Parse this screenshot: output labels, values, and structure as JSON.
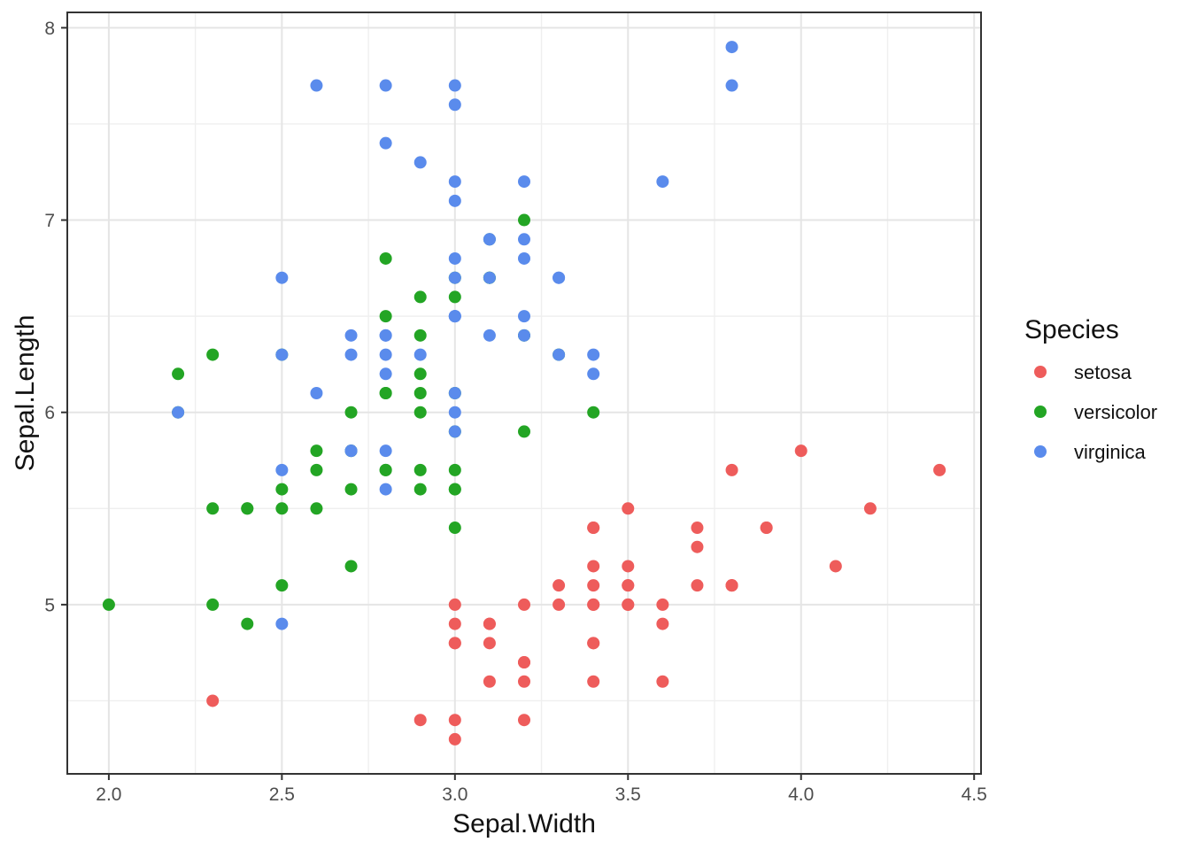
{
  "figure": {
    "description": "Scatter plot of iris dataset, Sepal.Width vs Sepal.Length by Species"
  },
  "chart_data": {
    "type": "scatter",
    "title": "",
    "xlabel": "Sepal.Width",
    "ylabel": "Sepal.Length",
    "xlim": [
      1.88,
      4.52
    ],
    "ylim": [
      4.12,
      8.08
    ],
    "x_ticks": {
      "values": [
        2.0,
        2.5,
        3.0,
        3.5,
        4.0,
        4.5
      ],
      "labels": [
        "2.0",
        "2.5",
        "3.0",
        "3.5",
        "4.0",
        "4.5"
      ]
    },
    "y_ticks": {
      "values": [
        5,
        6,
        7,
        8
      ],
      "labels": [
        "5",
        "6",
        "7",
        "8"
      ]
    },
    "x_minor_ticks": [
      2.25,
      2.75,
      3.25,
      3.75,
      4.25
    ],
    "y_minor_ticks": [
      4.5,
      5.5,
      6.5,
      7.5
    ],
    "grid": "major+minor",
    "legend": {
      "title": "Species",
      "position": "right",
      "entries": [
        "setosa",
        "versicolor",
        "virginica"
      ]
    },
    "series": [
      {
        "name": "setosa",
        "color": "#EE5C5B",
        "points": [
          [
            3.5,
            5.1
          ],
          [
            3.0,
            4.9
          ],
          [
            3.2,
            4.7
          ],
          [
            3.1,
            4.6
          ],
          [
            3.6,
            5.0
          ],
          [
            3.9,
            5.4
          ],
          [
            3.4,
            4.6
          ],
          [
            3.4,
            5.0
          ],
          [
            2.9,
            4.4
          ],
          [
            3.1,
            4.9
          ],
          [
            3.7,
            5.4
          ],
          [
            3.4,
            4.8
          ],
          [
            3.0,
            4.8
          ],
          [
            3.0,
            4.3
          ],
          [
            4.0,
            5.8
          ],
          [
            4.4,
            5.7
          ],
          [
            3.9,
            5.4
          ],
          [
            3.5,
            5.1
          ],
          [
            3.8,
            5.7
          ],
          [
            3.8,
            5.1
          ],
          [
            3.4,
            5.4
          ],
          [
            3.7,
            5.1
          ],
          [
            3.6,
            4.6
          ],
          [
            3.3,
            5.1
          ],
          [
            3.4,
            4.8
          ],
          [
            3.0,
            5.0
          ],
          [
            3.4,
            5.0
          ],
          [
            3.5,
            5.2
          ],
          [
            3.4,
            5.2
          ],
          [
            3.2,
            4.7
          ],
          [
            3.1,
            4.8
          ],
          [
            3.4,
            5.4
          ],
          [
            4.1,
            5.2
          ],
          [
            4.2,
            5.5
          ],
          [
            3.1,
            4.9
          ],
          [
            3.2,
            5.0
          ],
          [
            3.5,
            5.5
          ],
          [
            3.6,
            4.9
          ],
          [
            3.0,
            4.4
          ],
          [
            3.4,
            5.1
          ],
          [
            3.5,
            5.0
          ],
          [
            2.3,
            4.5
          ],
          [
            3.2,
            4.4
          ],
          [
            3.5,
            5.0
          ],
          [
            3.8,
            5.1
          ],
          [
            3.0,
            4.8
          ],
          [
            3.8,
            5.1
          ],
          [
            3.2,
            4.6
          ],
          [
            3.7,
            5.3
          ],
          [
            3.3,
            5.0
          ]
        ]
      },
      {
        "name": "versicolor",
        "color": "#23A524",
        "points": [
          [
            3.2,
            7.0
          ],
          [
            3.2,
            6.4
          ],
          [
            3.1,
            6.9
          ],
          [
            2.3,
            5.5
          ],
          [
            2.8,
            6.5
          ],
          [
            2.8,
            5.7
          ],
          [
            3.3,
            6.3
          ],
          [
            2.4,
            4.9
          ],
          [
            2.9,
            6.6
          ],
          [
            2.7,
            5.2
          ],
          [
            2.0,
            5.0
          ],
          [
            3.0,
            5.9
          ],
          [
            2.2,
            6.0
          ],
          [
            2.9,
            6.1
          ],
          [
            2.9,
            5.6
          ],
          [
            3.1,
            6.7
          ],
          [
            3.0,
            5.6
          ],
          [
            2.7,
            5.8
          ],
          [
            2.2,
            6.2
          ],
          [
            2.5,
            5.6
          ],
          [
            3.2,
            5.9
          ],
          [
            2.8,
            6.1
          ],
          [
            2.5,
            6.3
          ],
          [
            2.8,
            6.1
          ],
          [
            2.9,
            6.4
          ],
          [
            3.0,
            6.6
          ],
          [
            2.8,
            6.8
          ],
          [
            3.0,
            6.7
          ],
          [
            2.9,
            6.0
          ],
          [
            2.6,
            5.7
          ],
          [
            2.4,
            5.5
          ],
          [
            2.4,
            5.5
          ],
          [
            2.7,
            5.8
          ],
          [
            2.7,
            6.0
          ],
          [
            3.0,
            5.4
          ],
          [
            3.4,
            6.0
          ],
          [
            3.1,
            6.7
          ],
          [
            2.3,
            6.3
          ],
          [
            3.0,
            5.6
          ],
          [
            2.5,
            5.5
          ],
          [
            2.6,
            5.5
          ],
          [
            3.0,
            6.1
          ],
          [
            2.6,
            5.8
          ],
          [
            2.3,
            5.0
          ],
          [
            2.7,
            5.6
          ],
          [
            3.0,
            5.7
          ],
          [
            2.9,
            5.7
          ],
          [
            2.9,
            6.2
          ],
          [
            2.5,
            5.1
          ],
          [
            2.8,
            5.7
          ]
        ]
      },
      {
        "name": "virginica",
        "color": "#5A8BEC",
        "points": [
          [
            3.3,
            6.3
          ],
          [
            2.7,
            5.8
          ],
          [
            3.0,
            7.1
          ],
          [
            2.9,
            6.3
          ],
          [
            3.0,
            6.5
          ],
          [
            3.0,
            7.6
          ],
          [
            2.5,
            4.9
          ],
          [
            2.9,
            7.3
          ],
          [
            2.5,
            6.7
          ],
          [
            3.6,
            7.2
          ],
          [
            3.2,
            6.5
          ],
          [
            2.7,
            6.4
          ],
          [
            3.0,
            6.8
          ],
          [
            2.5,
            5.7
          ],
          [
            2.8,
            5.8
          ],
          [
            3.2,
            6.4
          ],
          [
            3.0,
            6.5
          ],
          [
            3.8,
            7.7
          ],
          [
            2.6,
            7.7
          ],
          [
            2.2,
            6.0
          ],
          [
            3.2,
            6.9
          ],
          [
            2.8,
            5.6
          ],
          [
            2.8,
            7.7
          ],
          [
            2.7,
            6.3
          ],
          [
            3.3,
            6.7
          ],
          [
            3.2,
            7.2
          ],
          [
            2.8,
            6.2
          ],
          [
            3.0,
            6.1
          ],
          [
            2.8,
            6.4
          ],
          [
            3.0,
            7.2
          ],
          [
            2.8,
            7.4
          ],
          [
            3.8,
            7.9
          ],
          [
            2.8,
            6.4
          ],
          [
            2.8,
            6.3
          ],
          [
            2.6,
            6.1
          ],
          [
            3.0,
            7.7
          ],
          [
            3.4,
            6.3
          ],
          [
            3.1,
            6.4
          ],
          [
            3.0,
            6.0
          ],
          [
            3.1,
            6.9
          ],
          [
            3.1,
            6.7
          ],
          [
            3.1,
            6.9
          ],
          [
            2.7,
            5.8
          ],
          [
            3.2,
            6.8
          ],
          [
            3.3,
            6.7
          ],
          [
            3.0,
            6.7
          ],
          [
            2.5,
            6.3
          ],
          [
            3.0,
            6.5
          ],
          [
            3.4,
            6.2
          ],
          [
            3.0,
            5.9
          ]
        ]
      }
    ],
    "style": {
      "background": "#FFFFFF",
      "panel_background": "#FFFFFF",
      "panel_border": "#333333",
      "major_grid": "#E5E5E5",
      "minor_grid": "#EFEFEF",
      "tick_color": "#333333",
      "tick_label_color": "#4D4D4D",
      "text_color": "#111111"
    }
  }
}
